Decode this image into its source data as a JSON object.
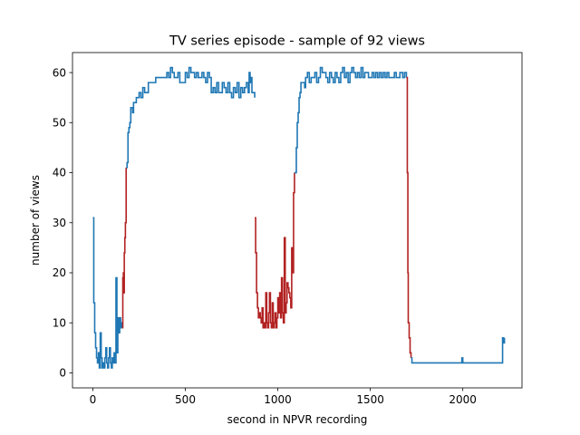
{
  "chart_data": {
    "type": "line",
    "title": "TV series episode - sample of 92 views",
    "xlabel": "second in NPVR recording",
    "ylabel": "number of views",
    "xlim": [
      -110,
      2320
    ],
    "ylim": [
      -3,
      64
    ],
    "xticks": [
      0,
      500,
      1000,
      1500,
      2000
    ],
    "yticks": [
      0,
      10,
      20,
      30,
      40,
      50,
      60
    ],
    "colors": {
      "normal": "#1f77b4",
      "highlight": "#b22222"
    },
    "grid": false,
    "series": [
      {
        "role": "normal",
        "points": [
          [
            0,
            31
          ],
          [
            5,
            14
          ],
          [
            10,
            8
          ],
          [
            15,
            5
          ],
          [
            20,
            3
          ],
          [
            25,
            2
          ],
          [
            30,
            4
          ],
          [
            35,
            1
          ],
          [
            40,
            8
          ],
          [
            45,
            3
          ],
          [
            50,
            1
          ],
          [
            55,
            2
          ],
          [
            60,
            1
          ],
          [
            65,
            3
          ],
          [
            70,
            5
          ],
          [
            75,
            2
          ],
          [
            80,
            1
          ],
          [
            85,
            3
          ],
          [
            90,
            5
          ],
          [
            95,
            2
          ],
          [
            100,
            1
          ],
          [
            105,
            3
          ],
          [
            110,
            2
          ],
          [
            115,
            4
          ],
          [
            120,
            2
          ],
          [
            125,
            19
          ],
          [
            130,
            4
          ],
          [
            135,
            11
          ],
          [
            140,
            8
          ],
          [
            145,
            11
          ],
          [
            150,
            9
          ],
          [
            155,
            10
          ],
          [
            160,
            9
          ]
        ]
      },
      {
        "role": "highlight",
        "points": [
          [
            160,
            9
          ],
          [
            162,
            19
          ],
          [
            165,
            20
          ],
          [
            168,
            16
          ],
          [
            170,
            24
          ],
          [
            173,
            27
          ],
          [
            176,
            30
          ],
          [
            180,
            41
          ]
        ]
      },
      {
        "role": "normal",
        "points": [
          [
            180,
            41
          ],
          [
            185,
            42
          ],
          [
            190,
            48
          ],
          [
            195,
            49
          ],
          [
            200,
            50
          ],
          [
            205,
            53
          ],
          [
            215,
            52
          ],
          [
            220,
            54
          ],
          [
            235,
            55
          ],
          [
            250,
            56
          ],
          [
            260,
            55
          ],
          [
            270,
            57
          ],
          [
            280,
            56
          ],
          [
            290,
            56
          ],
          [
            300,
            58
          ],
          [
            320,
            58
          ],
          [
            340,
            59
          ],
          [
            360,
            59
          ],
          [
            380,
            59
          ],
          [
            400,
            60
          ],
          [
            410,
            59
          ],
          [
            420,
            61
          ],
          [
            430,
            60
          ],
          [
            440,
            59
          ],
          [
            450,
            59
          ],
          [
            460,
            60
          ],
          [
            470,
            58
          ],
          [
            480,
            58
          ],
          [
            500,
            60
          ],
          [
            510,
            59
          ],
          [
            520,
            61
          ],
          [
            530,
            60
          ],
          [
            540,
            60
          ],
          [
            550,
            59
          ],
          [
            560,
            60
          ],
          [
            570,
            59
          ],
          [
            580,
            59
          ],
          [
            590,
            60
          ],
          [
            600,
            59
          ],
          [
            610,
            58
          ],
          [
            620,
            60
          ],
          [
            630,
            59
          ],
          [
            640,
            56
          ],
          [
            650,
            57
          ],
          [
            660,
            56
          ],
          [
            670,
            58
          ],
          [
            680,
            56
          ],
          [
            690,
            56
          ],
          [
            700,
            58
          ],
          [
            710,
            57
          ],
          [
            720,
            56
          ],
          [
            730,
            58
          ],
          [
            740,
            56
          ],
          [
            750,
            55
          ],
          [
            760,
            57
          ],
          [
            770,
            56
          ],
          [
            780,
            58
          ],
          [
            790,
            55
          ],
          [
            800,
            57
          ],
          [
            810,
            56
          ],
          [
            820,
            57
          ],
          [
            830,
            58
          ],
          [
            840,
            56
          ],
          [
            845,
            60
          ],
          [
            850,
            58
          ],
          [
            855,
            59
          ],
          [
            860,
            56
          ],
          [
            865,
            56
          ],
          [
            870,
            56
          ],
          [
            875,
            55
          ]
        ]
      },
      {
        "role": "highlight",
        "points": [
          [
            875,
            31
          ],
          [
            880,
            24
          ],
          [
            885,
            16
          ],
          [
            890,
            13
          ],
          [
            895,
            11
          ],
          [
            900,
            12
          ],
          [
            905,
            11
          ],
          [
            910,
            10
          ],
          [
            915,
            13
          ],
          [
            920,
            9
          ],
          [
            925,
            10
          ],
          [
            930,
            9
          ],
          [
            935,
            16
          ],
          [
            940,
            10
          ],
          [
            945,
            9
          ],
          [
            950,
            12
          ],
          [
            955,
            16
          ],
          [
            960,
            10
          ],
          [
            965,
            9
          ],
          [
            970,
            14
          ],
          [
            975,
            9
          ],
          [
            980,
            10
          ],
          [
            985,
            12
          ],
          [
            990,
            9
          ],
          [
            995,
            11
          ],
          [
            1000,
            15
          ],
          [
            1005,
            12
          ],
          [
            1010,
            16
          ],
          [
            1015,
            11
          ],
          [
            1020,
            19
          ],
          [
            1025,
            12
          ],
          [
            1030,
            10
          ],
          [
            1035,
            27
          ],
          [
            1040,
            12
          ],
          [
            1045,
            14
          ],
          [
            1050,
            18
          ],
          [
            1055,
            17
          ],
          [
            1060,
            16
          ],
          [
            1065,
            15
          ],
          [
            1070,
            13
          ],
          [
            1075,
            25
          ],
          [
            1080,
            20
          ],
          [
            1085,
            36
          ],
          [
            1090,
            40
          ]
        ]
      },
      {
        "role": "normal",
        "points": [
          [
            1090,
            40
          ],
          [
            1100,
            45
          ],
          [
            1105,
            50
          ],
          [
            1110,
            52
          ],
          [
            1115,
            55
          ],
          [
            1120,
            56
          ],
          [
            1125,
            58
          ],
          [
            1135,
            58
          ],
          [
            1145,
            57
          ],
          [
            1150,
            59
          ],
          [
            1160,
            60
          ],
          [
            1170,
            58
          ],
          [
            1180,
            59
          ],
          [
            1190,
            59
          ],
          [
            1200,
            60
          ],
          [
            1210,
            58
          ],
          [
            1220,
            59
          ],
          [
            1230,
            61
          ],
          [
            1240,
            60
          ],
          [
            1250,
            60
          ],
          [
            1260,
            59
          ],
          [
            1270,
            58
          ],
          [
            1280,
            60
          ],
          [
            1290,
            59
          ],
          [
            1300,
            58
          ],
          [
            1310,
            60
          ],
          [
            1320,
            59
          ],
          [
            1330,
            58
          ],
          [
            1340,
            60
          ],
          [
            1350,
            61
          ],
          [
            1360,
            59
          ],
          [
            1370,
            60
          ],
          [
            1380,
            58
          ],
          [
            1390,
            60
          ],
          [
            1400,
            61
          ],
          [
            1410,
            60
          ],
          [
            1420,
            59
          ],
          [
            1430,
            60
          ],
          [
            1440,
            59
          ],
          [
            1450,
            61
          ],
          [
            1460,
            59
          ],
          [
            1470,
            60
          ],
          [
            1480,
            60
          ],
          [
            1490,
            59
          ],
          [
            1500,
            59
          ],
          [
            1510,
            60
          ],
          [
            1520,
            59
          ],
          [
            1530,
            60
          ],
          [
            1540,
            59
          ],
          [
            1550,
            60
          ],
          [
            1560,
            59
          ],
          [
            1570,
            60
          ],
          [
            1580,
            59
          ],
          [
            1590,
            60
          ],
          [
            1600,
            59
          ],
          [
            1610,
            59
          ],
          [
            1620,
            59
          ],
          [
            1630,
            60
          ],
          [
            1640,
            59
          ],
          [
            1650,
            59
          ],
          [
            1660,
            60
          ],
          [
            1670,
            60
          ],
          [
            1675,
            59
          ],
          [
            1680,
            59
          ],
          [
            1685,
            60
          ],
          [
            1690,
            60
          ],
          [
            1695,
            59
          ]
        ]
      },
      {
        "role": "highlight",
        "points": [
          [
            1695,
            59
          ],
          [
            1700,
            40
          ],
          [
            1703,
            20
          ],
          [
            1705,
            10
          ],
          [
            1710,
            7
          ],
          [
            1715,
            4
          ],
          [
            1720,
            3
          ]
        ]
      },
      {
        "role": "normal",
        "points": [
          [
            1720,
            3
          ],
          [
            1725,
            2
          ],
          [
            1740,
            2
          ],
          [
            1760,
            2
          ],
          [
            1780,
            2
          ],
          [
            1800,
            2
          ],
          [
            1850,
            2
          ],
          [
            1900,
            2
          ],
          [
            1950,
            2
          ],
          [
            1990,
            2
          ],
          [
            1995,
            3
          ],
          [
            2000,
            2
          ],
          [
            2050,
            2
          ],
          [
            2100,
            2
          ],
          [
            2150,
            2
          ],
          [
            2200,
            2
          ],
          [
            2210,
            2
          ],
          [
            2215,
            7
          ],
          [
            2220,
            6
          ],
          [
            2225,
            7
          ]
        ]
      }
    ]
  }
}
